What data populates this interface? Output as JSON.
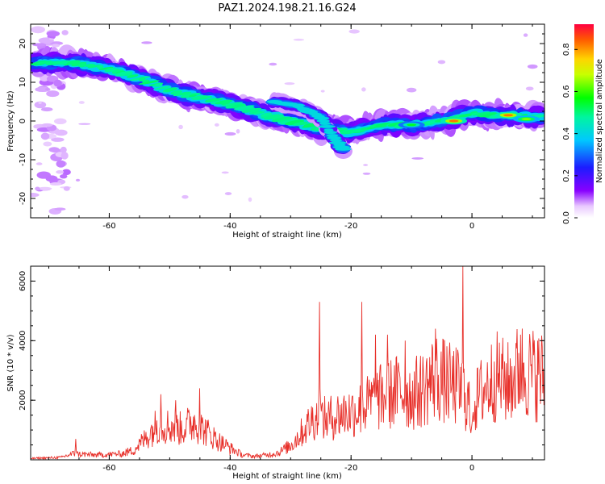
{
  "title": "PAZ1.2024.198.21.16.G24",
  "chart_data": [
    {
      "type": "heatmap",
      "xlabel": "Height of straight line (km)",
      "ylabel": "Frequency (Hz)",
      "xlim": [
        -73,
        12
      ],
      "ylim": [
        -25,
        25
      ],
      "xticks": [
        -60,
        -40,
        -20,
        0
      ],
      "yticks": [
        -20,
        -10,
        0,
        10,
        20
      ],
      "colorbar": {
        "label": "Normalized spectral amplitude",
        "range": [
          0.0,
          0.92
        ],
        "ticks": [
          "0.0",
          "0.2",
          "0.4",
          "0.6",
          "0.8"
        ]
      },
      "ridge": {
        "description_points": [
          [
            -72,
            15
          ],
          [
            -66,
            15
          ],
          [
            -60,
            13.5
          ],
          [
            -55,
            11
          ],
          [
            -50,
            8
          ],
          [
            -45,
            6
          ],
          [
            -40,
            4.5
          ],
          [
            -35,
            2
          ],
          [
            -30,
            0
          ],
          [
            -25,
            -2
          ],
          [
            -20,
            -3
          ],
          [
            -15,
            -1
          ],
          [
            -10,
            -1
          ],
          [
            -5,
            0
          ],
          [
            0,
            2
          ],
          [
            5,
            1.5
          ],
          [
            12,
            1
          ]
        ],
        "secondary_points": [
          [
            -33,
            5
          ],
          [
            -29,
            4
          ],
          [
            -25,
            1
          ],
          [
            -23,
            -4
          ],
          [
            -21,
            -8
          ]
        ],
        "hotspots": [
          [
            -10,
            -1,
            0.6
          ],
          [
            -3,
            0,
            0.9
          ],
          [
            6,
            1.5,
            0.9
          ],
          [
            9,
            0.5,
            0.7
          ]
        ]
      }
    },
    {
      "type": "line",
      "xlabel": "Height of straight line (km)",
      "ylabel": "SNR (10 * v/v)",
      "xlim": [
        -73,
        12
      ],
      "ylim": [
        0,
        6500
      ],
      "xticks": [
        -60,
        -40,
        -20,
        0
      ],
      "yticks": [
        2000,
        4000,
        6000
      ],
      "color": "#e8302a",
      "envelope": [
        [
          -73,
          60
        ],
        [
          -68,
          100
        ],
        [
          -66,
          250
        ],
        [
          -62,
          200
        ],
        [
          -58,
          250
        ],
        [
          -56,
          400
        ],
        [
          -54,
          900
        ],
        [
          -52,
          1500
        ],
        [
          -50,
          1400
        ],
        [
          -48,
          1300
        ],
        [
          -46,
          1600
        ],
        [
          -44,
          1200
        ],
        [
          -42,
          800
        ],
        [
          -40,
          500
        ],
        [
          -38,
          200
        ],
        [
          -36,
          150
        ],
        [
          -34,
          200
        ],
        [
          -32,
          300
        ],
        [
          -30,
          600
        ],
        [
          -28,
          1200
        ],
        [
          -26,
          1800
        ],
        [
          -24,
          1700
        ],
        [
          -22,
          1900
        ],
        [
          -20,
          2000
        ],
        [
          -18,
          2200
        ],
        [
          -16,
          2500
        ],
        [
          -14,
          2700
        ],
        [
          -12,
          2900
        ],
        [
          -10,
          2700
        ],
        [
          -8,
          3000
        ],
        [
          -6,
          3500
        ],
        [
          -4,
          3200
        ],
        [
          -2,
          3000
        ],
        [
          0,
          2200
        ],
        [
          2,
          3000
        ],
        [
          4,
          3500
        ],
        [
          6,
          3200
        ],
        [
          8,
          3800
        ],
        [
          10,
          3600
        ],
        [
          12,
          3500
        ]
      ],
      "spikes": [
        [
          -65.5,
          700
        ],
        [
          -51.5,
          2200
        ],
        [
          -49,
          2000
        ],
        [
          -45,
          2400
        ],
        [
          -25.2,
          5300
        ],
        [
          -18.2,
          5300
        ],
        [
          -16,
          4200
        ],
        [
          -14,
          4200
        ],
        [
          -11,
          4000
        ],
        [
          -6,
          4400
        ],
        [
          -1.5,
          6500
        ],
        [
          0,
          3100
        ],
        [
          8,
          4200
        ]
      ],
      "dips": [
        [
          -0.2,
          900
        ]
      ]
    }
  ]
}
